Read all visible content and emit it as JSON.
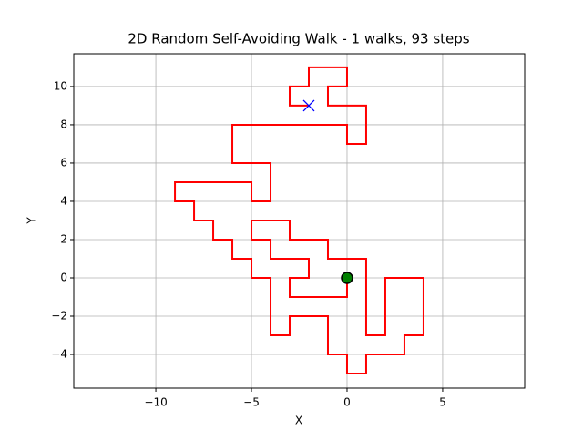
{
  "chart_data": {
    "type": "walk",
    "title": "2D Random Self-Avoiding Walk - 1 walks, 93 steps",
    "x_label": "X",
    "y_label": "Y",
    "x": [
      0,
      0,
      -3,
      -3,
      -2,
      -2,
      -4,
      -4,
      -5,
      -5,
      -3,
      -3,
      -1,
      -1,
      1,
      1,
      2,
      2,
      4,
      4,
      3,
      3,
      1,
      1,
      0,
      0,
      -1,
      -1,
      -3,
      -3,
      -4,
      -4,
      -5,
      -5,
      -6,
      -6,
      -7,
      -7,
      -8,
      -8,
      -9,
      -9,
      -5,
      -5,
      -4,
      -4,
      -6,
      -6,
      0,
      0,
      1,
      1,
      -1,
      -1,
      0,
      0,
      -2,
      -2,
      -3,
      -3,
      -2
    ],
    "values": [
      0,
      -1,
      -1,
      0,
      0,
      1,
      1,
      2,
      2,
      3,
      3,
      2,
      2,
      1,
      1,
      -3,
      -3,
      0,
      0,
      -3,
      -3,
      -4,
      -4,
      -5,
      -5,
      -4,
      -4,
      -2,
      -2,
      -3,
      -3,
      0,
      0,
      1,
      1,
      2,
      2,
      3,
      3,
      4,
      4,
      5,
      5,
      4,
      4,
      6,
      6,
      8,
      8,
      7,
      7,
      9,
      9,
      10,
      10,
      11,
      11,
      10,
      10,
      9,
      9
    ],
    "color": "#ff0000",
    "start_color": "#008000",
    "end_color": "#0000ff",
    "xlim": [
      -14.29,
      9.29
    ],
    "ylim": [
      -5.76,
      11.71
    ],
    "xticks": [
      {
        "value": -10,
        "label": "−10"
      },
      {
        "value": -5,
        "label": "−5"
      },
      0,
      5
    ],
    "yticks": [
      {
        "value": -4,
        "label": "−4"
      },
      {
        "value": -2,
        "label": "−2"
      },
      0,
      2,
      4,
      6,
      8,
      10
    ],
    "grid": true
  }
}
